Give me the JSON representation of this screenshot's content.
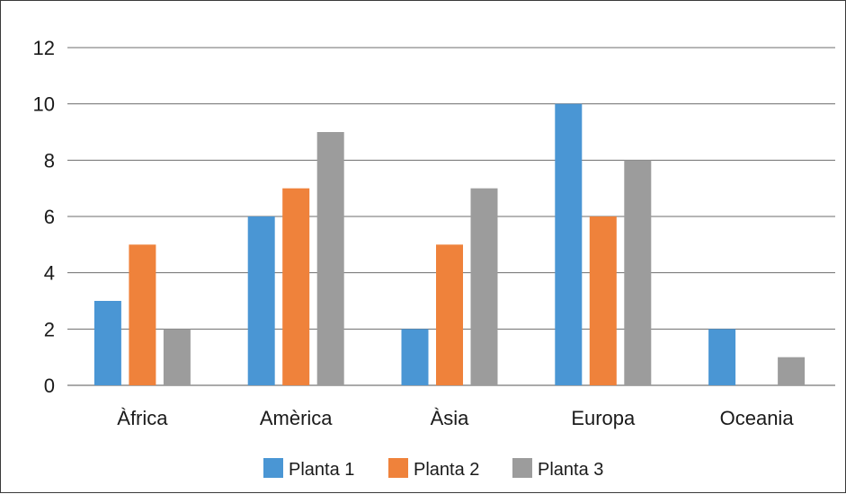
{
  "chart_data": {
    "type": "bar",
    "title": "",
    "xlabel": "",
    "ylabel": "",
    "categories": [
      "Àfrica",
      "Amèrica",
      "Àsia",
      "Europa",
      "Oceania"
    ],
    "series": [
      {
        "name": "Planta 1",
        "color": "#4a96d4",
        "values": [
          3,
          6,
          2,
          10,
          2
        ]
      },
      {
        "name": "Planta 2",
        "color": "#ef823b",
        "values": [
          5,
          7,
          5,
          6,
          0
        ]
      },
      {
        "name": "Planta 3",
        "color": "#9c9c9c",
        "values": [
          2,
          9,
          7,
          8,
          1
        ]
      }
    ],
    "ylim": [
      0,
      12
    ],
    "yticks": [
      "0",
      "2",
      "4",
      "6",
      "8",
      "10",
      "12"
    ],
    "grid": true,
    "legend_position": "bottom"
  }
}
